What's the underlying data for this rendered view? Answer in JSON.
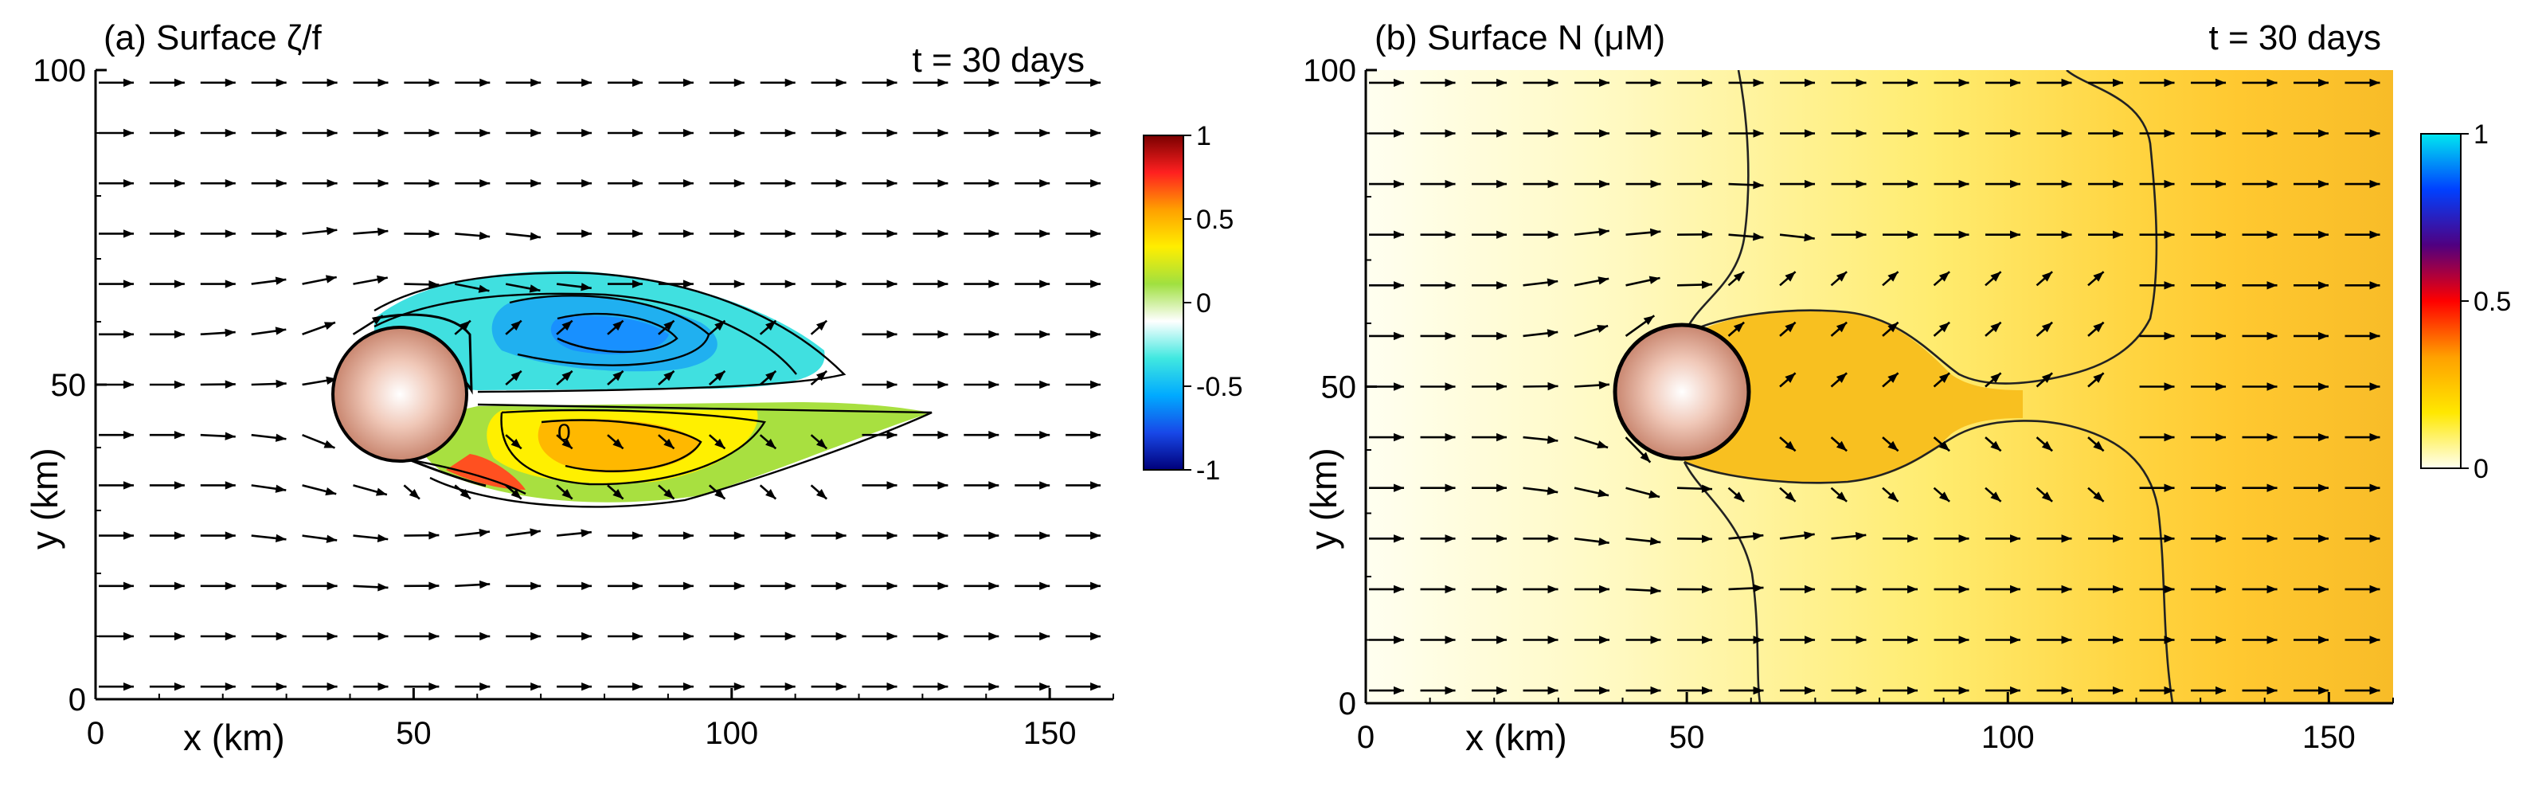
{
  "chart_data": [
    {
      "type": "heatmap",
      "panel": "(a)",
      "title": "(a) Surface ζ/f",
      "time_label": "t = 30 days",
      "xlabel": "x (km)",
      "ylabel": "y (km)",
      "xlim": [
        0,
        160
      ],
      "ylim": [
        0,
        100
      ],
      "xticks": [
        0,
        50,
        100,
        150
      ],
      "yticks": [
        0,
        50,
        100
      ],
      "island": {
        "center": [
          48,
          48
        ],
        "radius": 10.5
      },
      "colorbar": {
        "ticks": [
          "1",
          "0.5",
          "0",
          "-0.5",
          "-1"
        ],
        "colors": [
          "#7a0000",
          "#ff2020",
          "#ffa000",
          "#ffee00",
          "#a0e040",
          "#ffffff",
          "#40e8e0",
          "#00aaff",
          "#1848e8",
          "#00007a"
        ]
      },
      "contour_annotation": "0",
      "vorticity_regions": [
        {
          "name": "cyclonic-wake-upper",
          "sign": "negative",
          "x": [
            48,
            112
          ],
          "y": [
            50,
            67
          ],
          "min_value": -0.6
        },
        {
          "name": "anticyclonic-wake-lower",
          "sign": "positive",
          "x": [
            48,
            132
          ],
          "y": [
            33,
            48
          ],
          "max_value": 0.4
        }
      ],
      "flow": {
        "direction": "left-to-right",
        "vector_spacing_x_km": 8,
        "vector_spacing_y_km": 8
      }
    },
    {
      "type": "heatmap",
      "panel": "(b)",
      "title": "(b) Surface N (μM)",
      "time_label": "t = 30 days",
      "xlabel": "x (km)",
      "ylabel": "y (km)",
      "xlim": [
        0,
        160
      ],
      "ylim": [
        0,
        100
      ],
      "xticks": [
        0,
        50,
        100,
        150
      ],
      "yticks": [
        0,
        50,
        100
      ],
      "island": {
        "center": [
          50,
          50
        ],
        "radius": 10.5
      },
      "colorbar": {
        "ticks": [
          "1",
          "0.5",
          "0"
        ],
        "colors": [
          "#00e8f0",
          "#0040ff",
          "#500080",
          "#ff0000",
          "#ffa000",
          "#ffe800",
          "#fffff0"
        ]
      },
      "nutrient_gradient": {
        "x": [
          0,
          160
        ],
        "values": [
          0.02,
          0.3
        ]
      },
      "flow": {
        "direction": "left-to-right",
        "vector_spacing_x_km": 8,
        "vector_spacing_y_km": 8
      }
    }
  ]
}
